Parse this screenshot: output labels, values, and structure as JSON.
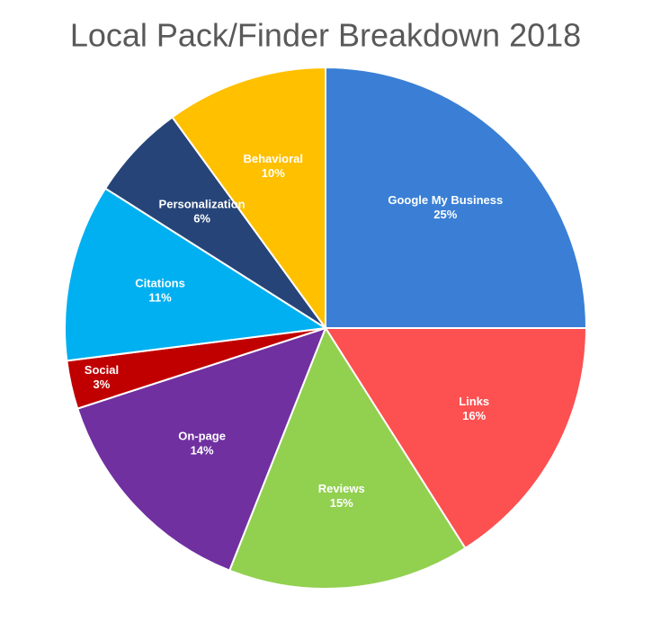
{
  "chart_data": {
    "type": "pie",
    "title": "Local Pack/Finder Breakdown 2018",
    "categories": [
      "Google My Business",
      "Links",
      "Reviews",
      "On-page",
      "Social",
      "Citations",
      "Personalization",
      "Behavioral"
    ],
    "values": [
      25,
      16,
      15,
      14,
      3,
      11,
      6,
      10
    ],
    "value_labels": [
      "25%",
      "16%",
      "15%",
      "14%",
      "3%",
      "11%",
      "6%",
      "10%"
    ],
    "colors": [
      "#3a7fd5",
      "#fd5050",
      "#92d050",
      "#7030a0",
      "#c00000",
      "#00b0f0",
      "#264478",
      "#ffc000"
    ]
  }
}
